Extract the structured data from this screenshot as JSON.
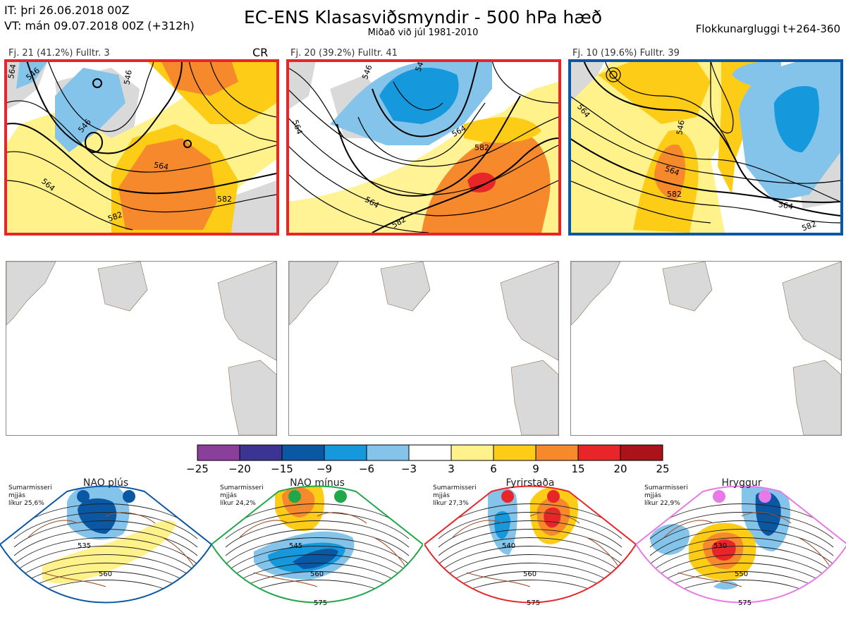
{
  "header": {
    "it": "IT: þri 26.06.2018 00Z",
    "vt": "VT: mán 09.07.2018 00Z  (+312h)",
    "title": "EC-ENS Klasasviðsmyndir - 500 hPa hæð",
    "subtitle": "Miðað við júl 1981-2010",
    "window": "Flokkunargluggi t+264-360"
  },
  "panels": [
    {
      "label": "Fj. 21 (41.2%)   Fulltr. 3",
      "tag": "CR",
      "border": "#e8262a",
      "contours": [
        "564",
        "546",
        "546",
        "564",
        "582",
        "546",
        "564"
      ]
    },
    {
      "label": "Fj. 20 (39.2%)   Fulltr. 41",
      "tag": "",
      "border": "#e8262a",
      "contours": [
        "546",
        "564",
        "582",
        "564",
        "582",
        "564"
      ]
    },
    {
      "label": "Fj. 10 (19.6%)   Fulltr. 39",
      "tag": "",
      "border": "#0a57a4",
      "contours": [
        "546",
        "564",
        "582",
        "564",
        "546",
        "582"
      ]
    }
  ],
  "colorbar": {
    "ticks": [
      "−25",
      "−20",
      "−15",
      "−9",
      "−6",
      "−3",
      "3",
      "6",
      "9",
      "15",
      "20",
      "25"
    ],
    "colors": [
      "#8a3f9a",
      "#3b3493",
      "#0a57a4",
      "#1599dc",
      "#84c3ea",
      "#ffffff",
      "#fff28a",
      "#fdcc16",
      "#f6892b",
      "#e8262a",
      "#ab1219"
    ]
  },
  "regimes": [
    {
      "title": "NAO plús",
      "season": "Sumarmisseri",
      "tag2": "mjjás",
      "prob": "líkur 25,6%",
      "color": "#0a57a4",
      "contours": [
        "535",
        "560"
      ]
    },
    {
      "title": "NAO mínus",
      "season": "Sumarmisseri",
      "tag2": "mjjás",
      "prob": "líkur 24,2%",
      "color": "#1fa84a",
      "contours": [
        "545",
        "560",
        "575"
      ]
    },
    {
      "title": "Fyrirstaða",
      "season": "Sumarmisseri",
      "tag2": "mjjás",
      "prob": "líkur 27,3%",
      "color": "#e8262a",
      "contours": [
        "540",
        "560",
        "575"
      ]
    },
    {
      "title": "Hryggur",
      "season": "Sumarmisseri",
      "tag2": "mjjás",
      "prob": "líkur 22,9%",
      "color": "#e87ae8",
      "contours": [
        "530",
        "550",
        "575"
      ]
    }
  ],
  "chart_data": {
    "type": "heatmap",
    "title": "EC-ENS Klasasviðsmyndir - 500 hPa hæð",
    "subtitle": "Miðað við júl 1981-2010",
    "colorbar_bounds": [
      -25,
      -20,
      -15,
      -9,
      -6,
      -3,
      3,
      6,
      9,
      15,
      20,
      25
    ],
    "clusters": [
      {
        "name": "Fj. 21",
        "share_percent": 41.2,
        "representative": 3
      },
      {
        "name": "Fj. 20",
        "share_percent": 39.2,
        "representative": 41
      },
      {
        "name": "Fj. 10",
        "share_percent": 19.6,
        "representative": 39
      }
    ],
    "regimes": [
      {
        "name": "NAO plús",
        "probability_percent": 25.6
      },
      {
        "name": "NAO mínus",
        "probability_percent": 24.2
      },
      {
        "name": "Fyrirstaða",
        "probability_percent": 27.3
      },
      {
        "name": "Hryggur",
        "probability_percent": 22.9
      }
    ]
  }
}
